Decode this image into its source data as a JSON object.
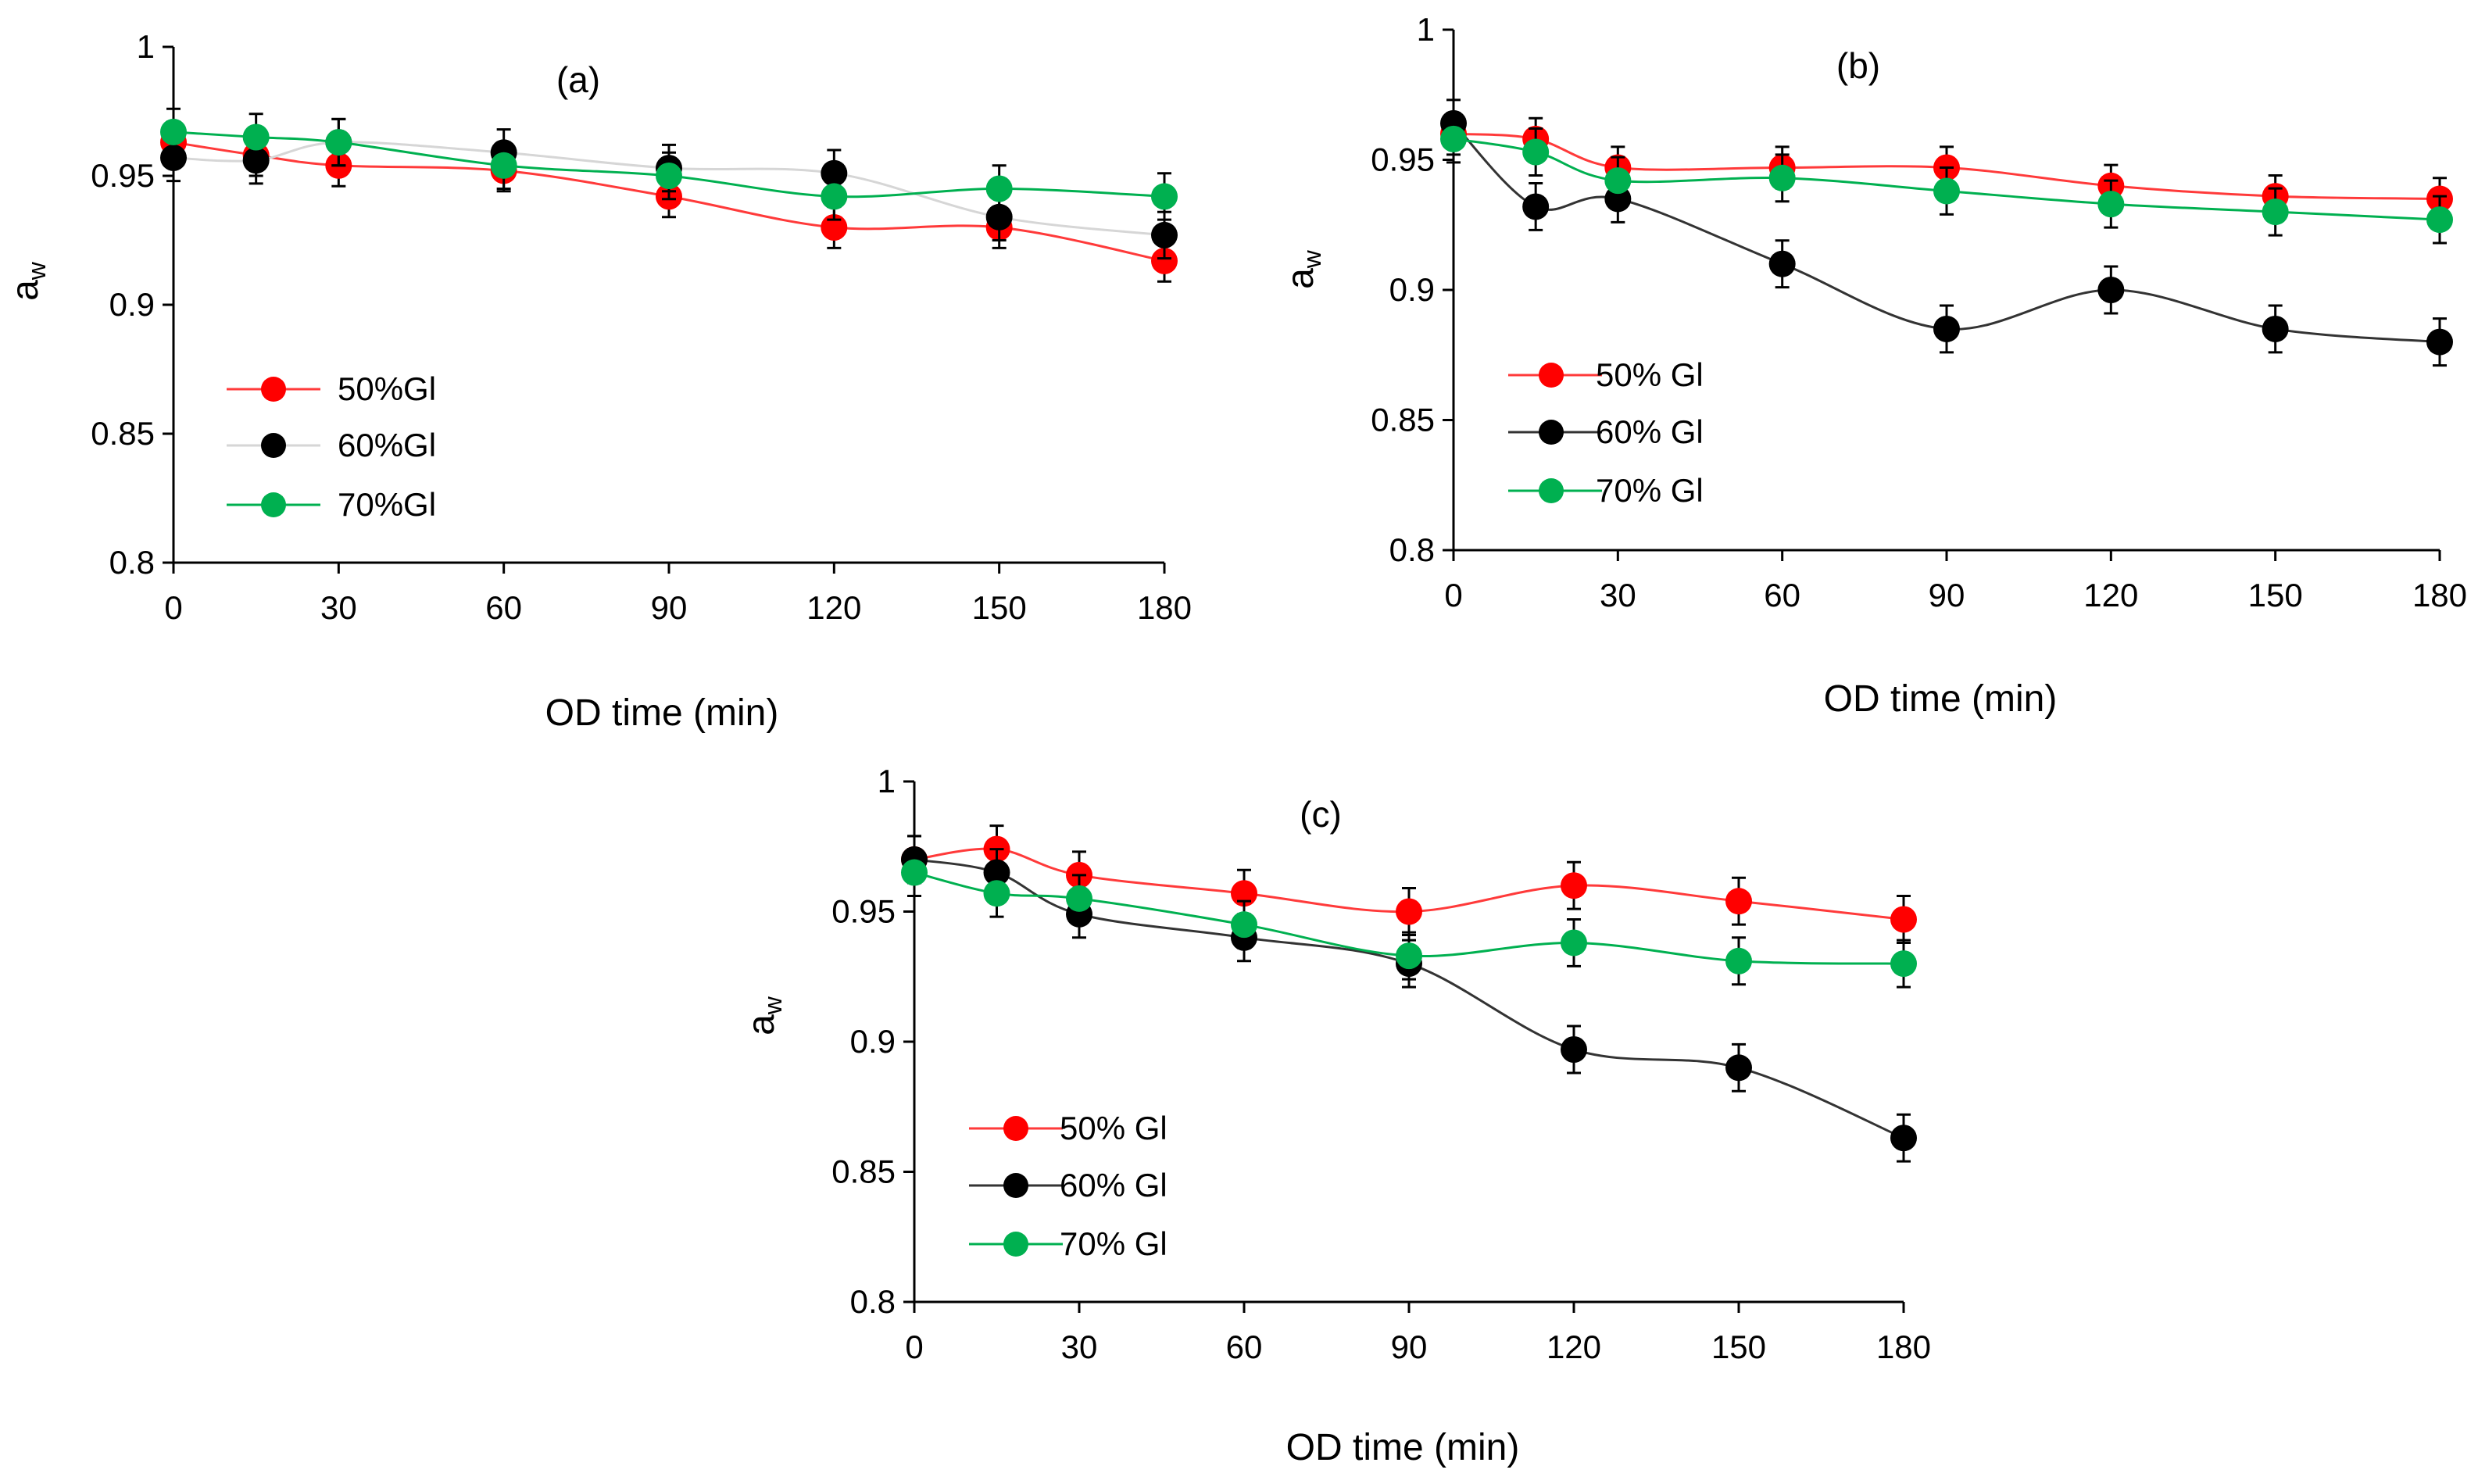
{
  "figure": {
    "panels": [
      "a",
      "b",
      "c"
    ]
  },
  "chart_data": [
    {
      "type": "line",
      "panel_label": "(a)",
      "xlabel": "OD time (min)",
      "ylabel_main": "a",
      "ylabel_sub": "w",
      "xlim": [
        0,
        180
      ],
      "ylim": [
        0.8,
        1
      ],
      "x_ticks": [
        0,
        30,
        60,
        90,
        120,
        150,
        180
      ],
      "x_tick_labels": [
        "0",
        "30",
        "60",
        "90",
        "120",
        "150",
        "180"
      ],
      "y_ticks": [
        0.8,
        0.85,
        0.9,
        0.95,
        1
      ],
      "y_tick_labels": [
        "0.8",
        "0.85",
        "0.9",
        "0.95",
        "1"
      ],
      "legend_position": "lower-left",
      "x": [
        0,
        15,
        30,
        60,
        90,
        120,
        150,
        180
      ],
      "series": [
        {
          "name": "50%Gl",
          "color": "#ff0000",
          "line_color": "#ff3a3a",
          "values": [
            0.963,
            0.958,
            0.954,
            0.952,
            0.942,
            0.93,
            0.93,
            0.917
          ],
          "error": [
            0.008,
            0.008,
            0.008,
            0.008,
            0.008,
            0.008,
            0.008,
            0.008
          ]
        },
        {
          "name": "60%Gl",
          "color": "#000000",
          "line_color": "#d6d6d6",
          "values": [
            0.957,
            0.956,
            0.963,
            0.959,
            0.953,
            0.951,
            0.934,
            0.927
          ],
          "error": [
            0.009,
            0.009,
            0.009,
            0.009,
            0.009,
            0.009,
            0.009,
            0.009
          ]
        },
        {
          "name": "70%Gl",
          "color": "#00b050",
          "line_color": "#00b050",
          "values": [
            0.967,
            0.965,
            0.963,
            0.954,
            0.95,
            0.942,
            0.945,
            0.942
          ],
          "error": [
            0.009,
            0.009,
            0.009,
            0.009,
            0.009,
            0.009,
            0.009,
            0.009
          ]
        }
      ]
    },
    {
      "type": "line",
      "panel_label": "(b)",
      "xlabel": "OD time (min)",
      "ylabel_main": "a",
      "ylabel_sub": "w",
      "xlim": [
        0,
        180
      ],
      "ylim": [
        0.8,
        1
      ],
      "x_ticks": [
        0,
        30,
        60,
        90,
        120,
        150,
        180
      ],
      "x_tick_labels": [
        "0",
        "30",
        "60",
        "90",
        "120",
        "150",
        "180"
      ],
      "y_ticks": [
        0.8,
        0.85,
        0.9,
        0.95,
        1
      ],
      "y_tick_labels": [
        "0.8",
        "0.85",
        "0.9",
        "0.95",
        "1"
      ],
      "legend_position": "lower-left",
      "x": [
        0,
        15,
        30,
        60,
        90,
        120,
        150,
        180
      ],
      "series": [
        {
          "name": "50% Gl",
          "color": "#ff0000",
          "line_color": "#ff3a3a",
          "values": [
            0.96,
            0.958,
            0.947,
            0.947,
            0.947,
            0.94,
            0.936,
            0.935
          ],
          "error": [
            0.008,
            0.008,
            0.008,
            0.008,
            0.008,
            0.008,
            0.008,
            0.008
          ]
        },
        {
          "name": "60% Gl",
          "color": "#000000",
          "line_color": "#333333",
          "values": [
            0.964,
            0.932,
            0.935,
            0.91,
            0.885,
            0.9,
            0.885,
            0.88
          ],
          "error": [
            0.009,
            0.009,
            0.009,
            0.009,
            0.009,
            0.009,
            0.009,
            0.009
          ]
        },
        {
          "name": "70% Gl",
          "color": "#00b050",
          "line_color": "#00b050",
          "values": [
            0.958,
            0.953,
            0.942,
            0.943,
            0.938,
            0.933,
            0.93,
            0.927
          ],
          "error": [
            0.009,
            0.009,
            0.009,
            0.009,
            0.009,
            0.009,
            0.009,
            0.009
          ]
        }
      ]
    },
    {
      "type": "line",
      "panel_label": "(c)",
      "xlabel": "OD time (min)",
      "ylabel_main": "a",
      "ylabel_sub": "w",
      "xlim": [
        0,
        180
      ],
      "ylim": [
        0.8,
        1
      ],
      "x_ticks": [
        0,
        30,
        60,
        90,
        120,
        150,
        180
      ],
      "x_tick_labels": [
        "0",
        "30",
        "60",
        "90",
        "120",
        "150",
        "180"
      ],
      "y_ticks": [
        0.8,
        0.85,
        0.9,
        0.95,
        1
      ],
      "y_tick_labels": [
        "0.8",
        "0.85",
        "0.9",
        "0.95",
        "1"
      ],
      "legend_position": "lower-left",
      "x": [
        0,
        15,
        30,
        60,
        90,
        120,
        150,
        180
      ],
      "series": [
        {
          "name": "50% Gl",
          "color": "#ff0000",
          "line_color": "#ff3a3a",
          "values": [
            0.97,
            0.974,
            0.964,
            0.957,
            0.95,
            0.96,
            0.954,
            0.947
          ],
          "error": [
            0.009,
            0.009,
            0.009,
            0.009,
            0.009,
            0.009,
            0.009,
            0.009
          ]
        },
        {
          "name": "60% Gl",
          "color": "#000000",
          "line_color": "#333333",
          "values": [
            0.97,
            0.965,
            0.949,
            0.94,
            0.93,
            0.897,
            0.89,
            0.863
          ],
          "error": [
            0.009,
            0.009,
            0.009,
            0.009,
            0.009,
            0.009,
            0.009,
            0.009
          ]
        },
        {
          "name": "70% Gl",
          "color": "#00b050",
          "line_color": "#00b050",
          "values": [
            0.965,
            0.957,
            0.955,
            0.945,
            0.933,
            0.938,
            0.931,
            0.93
          ],
          "error": [
            0.009,
            0.009,
            0.009,
            0.009,
            0.009,
            0.009,
            0.009,
            0.009
          ]
        }
      ]
    }
  ]
}
